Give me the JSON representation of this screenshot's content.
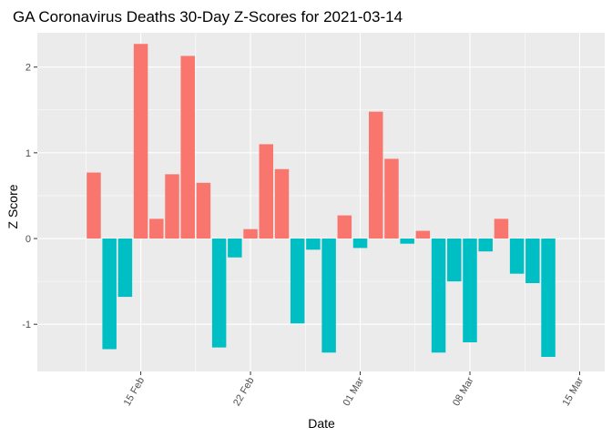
{
  "chart_data": {
    "type": "bar",
    "title": "GA Coronavirus Deaths 30-Day Z-Scores for 2021-03-14",
    "xlabel": "Date",
    "ylabel": "Z Score",
    "ylim": [
      -1.55,
      2.4
    ],
    "xlim_days": [
      -3.6,
      32.6
    ],
    "x_start_date": "2021-02-12",
    "yticks": [
      -1,
      0,
      1,
      2
    ],
    "ytick_labels": [
      "-1",
      "0",
      "1",
      "2"
    ],
    "xticks_day_offset": [
      3,
      10,
      17,
      24,
      31
    ],
    "xtick_labels": [
      "15 Feb",
      "22 Feb",
      "01 Mar",
      "08 Mar",
      "15 Mar"
    ],
    "positive_color": "#F8766D",
    "negative_color": "#00BFC4",
    "panel_color": "#EBEBEB",
    "grid_color": "#FFFFFF",
    "values": [
      0.77,
      -1.29,
      -0.68,
      2.27,
      0.23,
      0.75,
      2.13,
      0.65,
      -1.27,
      -0.22,
      0.11,
      1.1,
      0.81,
      -0.99,
      -0.13,
      -1.33,
      0.27,
      -0.11,
      1.48,
      0.93,
      -0.06,
      0.09,
      -1.33,
      -0.5,
      -1.21,
      -0.15,
      0.23,
      -0.41,
      -0.52,
      -1.38
    ]
  }
}
